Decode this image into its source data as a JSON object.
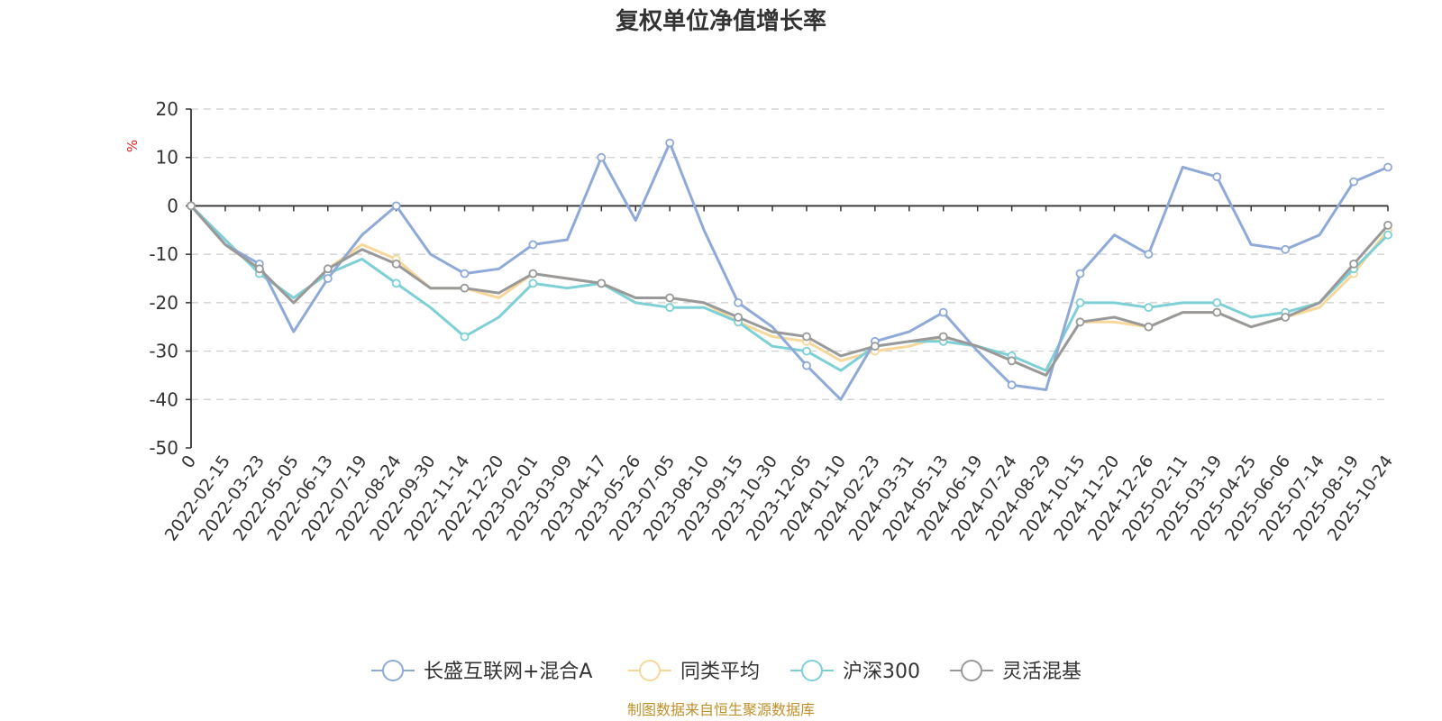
{
  "chart_data": {
    "type": "line",
    "title": "复权单位净值增长率",
    "ylabel": "%",
    "ylim": [
      -50,
      20
    ],
    "yticks": [
      -50,
      -40,
      -30,
      -20,
      -10,
      0,
      10,
      20
    ],
    "grid": true,
    "legend_position": "bottom",
    "source": "制图数据来自恒生聚源数据库",
    "xlabels": [
      "0",
      "2022-02-15",
      "2022-03-23",
      "2022-05-05",
      "2022-06-13",
      "2022-07-19",
      "2022-08-24",
      "2022-09-30",
      "2022-11-14",
      "2022-12-20",
      "2023-02-01",
      "2023-03-09",
      "2023-04-17",
      "2023-05-26",
      "2023-07-05",
      "2023-08-10",
      "2023-09-15",
      "2023-10-30",
      "2023-12-05",
      "2024-01-10",
      "2024-02-23",
      "2024-03-31",
      "2024-05-13",
      "2024-06-19",
      "2024-07-24",
      "2024-08-29",
      "2024-10-15",
      "2024-11-20",
      "2024-12-26",
      "2025-02-11",
      "2025-03-19",
      "2025-04-25",
      "2025-06-06",
      "2025-07-14",
      "2025-08-19",
      "2025-10-24"
    ],
    "series": [
      {
        "name": "长盛互联网+混合A",
        "color": "#8fa9d8",
        "values": [
          0,
          -8,
          -12,
          -26,
          -15,
          -6,
          0,
          -10,
          -14,
          -13,
          -8,
          -7,
          10,
          -3,
          13,
          -5,
          -20,
          -25,
          -33,
          -40,
          -28,
          -26,
          -22,
          -30,
          -37,
          -38,
          -14,
          -6,
          -10,
          8,
          6,
          -8,
          -9,
          -6,
          5,
          8
        ]
      },
      {
        "name": "同类平均",
        "color": "#f8d79a",
        "values": [
          0,
          -8,
          -13,
          -20,
          -13,
          -8,
          -11,
          -17,
          -17,
          -19,
          -14,
          -15,
          -16,
          -19,
          -19,
          -20,
          -24,
          -27,
          -28,
          -32,
          -30,
          -29,
          -27,
          -29,
          -32,
          -35,
          -24,
          -24,
          -25,
          -22,
          -22,
          -25,
          -23,
          -21,
          -14,
          -5
        ]
      },
      {
        "name": "沪深300",
        "color": "#7dd0d5",
        "values": [
          0,
          -7,
          -14,
          -19,
          -14,
          -11,
          -16,
          -21,
          -27,
          -23,
          -16,
          -17,
          -16,
          -20,
          -21,
          -21,
          -24,
          -29,
          -30,
          -34,
          -29,
          -28,
          -28,
          -29,
          -31,
          -34,
          -20,
          -20,
          -21,
          -20,
          -20,
          -23,
          -22,
          -20,
          -13,
          -6
        ]
      },
      {
        "name": "灵活混基",
        "color": "#999999",
        "values": [
          0,
          -8,
          -13,
          -20,
          -13,
          -9,
          -12,
          -17,
          -17,
          -18,
          -14,
          -15,
          -16,
          -19,
          -19,
          -20,
          -23,
          -26,
          -27,
          -31,
          -29,
          -28,
          -27,
          -29,
          -32,
          -35,
          -24,
          -23,
          -25,
          -22,
          -22,
          -25,
          -23,
          -20,
          -12,
          -4
        ]
      }
    ]
  }
}
